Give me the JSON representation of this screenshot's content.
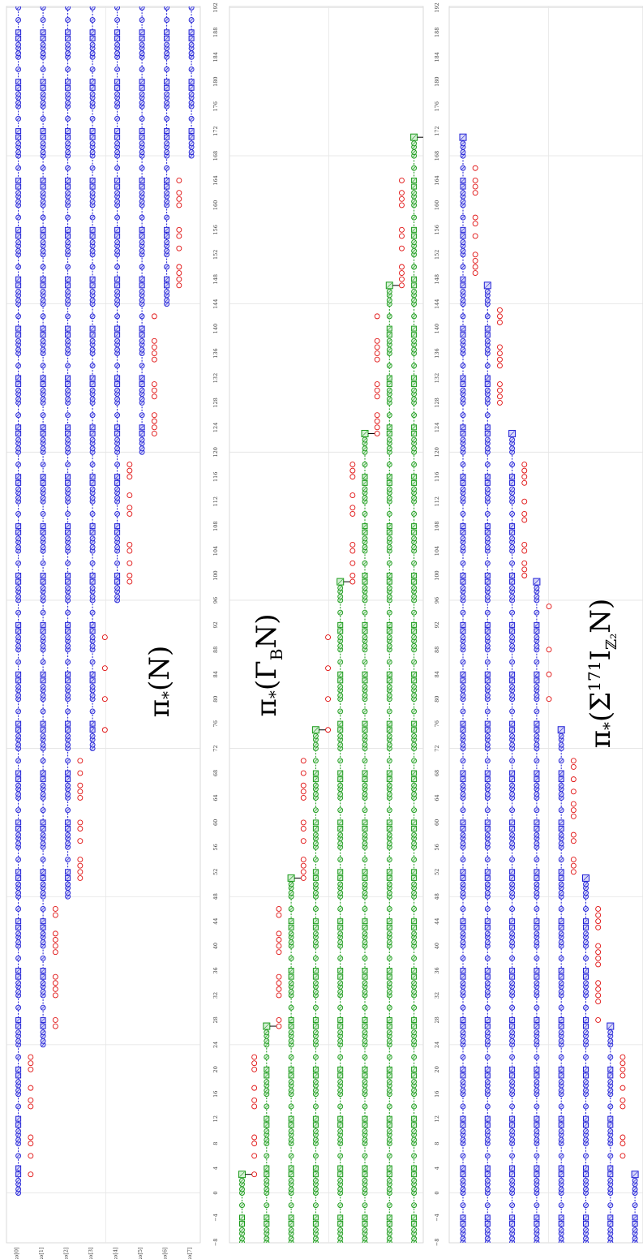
{
  "chart_data": [
    {
      "type": "scatter",
      "title": "π*(N)",
      "columns": [
        "ko[0]",
        "ko[1]",
        "ko[2]",
        "ko[3]",
        "ko[4]",
        "ko[5]",
        "ko[6]",
        "ko[7]"
      ],
      "axis_ticks": [
        -8,
        -4,
        0,
        4,
        8,
        12,
        16,
        20,
        24,
        28,
        32,
        36,
        40,
        44,
        48,
        52,
        56,
        60,
        64,
        68,
        72,
        76,
        80,
        84,
        88,
        92,
        96,
        100,
        104,
        108,
        112,
        116,
        120,
        124,
        128,
        132,
        136,
        140,
        144,
        148,
        152,
        156,
        160,
        164,
        168,
        172,
        176,
        180,
        184,
        188,
        192
      ],
      "axis_range": [
        -8,
        192
      ],
      "grid": true,
      "colors": {
        "tower": "#1f1fd6",
        "sporadic": "#e01010"
      },
      "towers": [
        {
          "column": 0,
          "start": 0,
          "end": 192
        },
        {
          "column": 1,
          "start": 24,
          "end": 192
        },
        {
          "column": 2,
          "start": 48,
          "end": 192
        },
        {
          "column": 3,
          "start": 72,
          "end": 192
        },
        {
          "column": 4,
          "start": 96,
          "end": 192
        },
        {
          "column": 5,
          "start": 120,
          "end": 192
        },
        {
          "column": 6,
          "start": 144,
          "end": 192
        },
        {
          "column": 7,
          "start": 168,
          "end": 192
        }
      ],
      "sporadic": [
        {
          "column": 0.5,
          "degrees": [
            3,
            6,
            8,
            9,
            14,
            15,
            17,
            20,
            21,
            22
          ]
        },
        {
          "column": 1.5,
          "degrees": [
            27,
            28,
            32,
            33,
            34,
            35,
            39,
            40,
            41,
            42,
            45,
            46
          ]
        },
        {
          "column": 2.5,
          "degrees": [
            51,
            52,
            53,
            54,
            57,
            59,
            60,
            64,
            65,
            66,
            68,
            70
          ]
        },
        {
          "column": 3.5,
          "degrees": [
            75,
            80,
            85,
            90
          ]
        },
        {
          "column": 4.5,
          "degrees": [
            99,
            100,
            102,
            104,
            105,
            110,
            111,
            113,
            116,
            117,
            118
          ]
        },
        {
          "column": 5.5,
          "degrees": [
            123,
            124,
            125,
            126,
            129,
            130,
            131,
            135,
            136,
            137,
            138,
            142
          ]
        },
        {
          "column": 6.5,
          "degrees": [
            147,
            148,
            149,
            150,
            153,
            155,
            156,
            160,
            161,
            162,
            164
          ]
        }
      ]
    },
    {
      "type": "scatter",
      "title": "π*(Γ_B N)",
      "axis_ticks": [
        -8,
        -4,
        0,
        4,
        8,
        12,
        16,
        20,
        24,
        28,
        32,
        36,
        40,
        44,
        48,
        52,
        56,
        60,
        64,
        68,
        72,
        76,
        80,
        84,
        88,
        92,
        96,
        100,
        104,
        108,
        112,
        116,
        120,
        124,
        128,
        132,
        136,
        140,
        144,
        148,
        152,
        156,
        160,
        164,
        168,
        172,
        176,
        180,
        184,
        188,
        192
      ],
      "axis_range": [
        -8,
        192
      ],
      "grid": true,
      "colors": {
        "tower": "#1a9a1a",
        "sporadic": "#e01010"
      },
      "towers": [
        {
          "column": 0,
          "start": -8,
          "end": 3
        },
        {
          "column": 1,
          "start": -8,
          "end": 27
        },
        {
          "column": 2,
          "start": -8,
          "end": 51
        },
        {
          "column": 3,
          "start": -8,
          "end": 75
        },
        {
          "column": 4,
          "start": -8,
          "end": 99
        },
        {
          "column": 5,
          "start": -8,
          "end": 123
        },
        {
          "column": 6,
          "start": -8,
          "end": 147
        },
        {
          "column": 7,
          "start": -8,
          "end": 171
        }
      ],
      "sporadic": [
        {
          "column": 0.5,
          "degrees": [
            3,
            6,
            8,
            9,
            14,
            15,
            17,
            20,
            21,
            22
          ]
        },
        {
          "column": 1.5,
          "degrees": [
            27,
            28,
            32,
            33,
            34,
            35,
            39,
            40,
            41,
            42,
            45,
            46
          ]
        },
        {
          "column": 2.5,
          "degrees": [
            51,
            52,
            53,
            54,
            57,
            59,
            60,
            64,
            65,
            66,
            68,
            70
          ]
        },
        {
          "column": 3.5,
          "degrees": [
            75,
            80,
            85,
            90
          ]
        },
        {
          "column": 4.5,
          "degrees": [
            99,
            100,
            102,
            104,
            105,
            110,
            111,
            113,
            116,
            117,
            118
          ]
        },
        {
          "column": 5.5,
          "degrees": [
            123,
            124,
            125,
            126,
            129,
            130,
            131,
            135,
            136,
            137,
            138,
            142
          ]
        },
        {
          "column": 6.5,
          "degrees": [
            147,
            148,
            149,
            150,
            153,
            155,
            156,
            160,
            161,
            162,
            164
          ]
        }
      ]
    },
    {
      "type": "scatter",
      "title": "π*(Σ^171 I_Z2 N)",
      "axis_ticks": [
        -8,
        -4,
        0,
        4,
        8,
        12,
        16,
        20,
        24,
        28,
        32,
        36,
        40,
        44,
        48,
        52,
        56,
        60,
        64,
        68,
        72,
        76,
        80,
        84,
        88,
        92,
        96,
        100,
        104,
        108,
        112,
        116,
        120,
        124,
        128,
        132,
        136,
        140,
        144,
        148,
        152,
        156,
        160,
        164,
        168,
        172,
        176,
        180,
        184,
        188,
        192
      ],
      "axis_range": [
        -8,
        192
      ],
      "grid": true,
      "colors": {
        "tower": "#1f1fd6",
        "sporadic": "#e01010"
      },
      "towers": [
        {
          "column": 0,
          "start": -8,
          "end": 171
        },
        {
          "column": 1,
          "start": -8,
          "end": 147
        },
        {
          "column": 2,
          "start": -8,
          "end": 123
        },
        {
          "column": 3,
          "start": -8,
          "end": 99
        },
        {
          "column": 4,
          "start": -8,
          "end": 75
        },
        {
          "column": 5,
          "start": -8,
          "end": 51
        },
        {
          "column": 6,
          "start": -8,
          "end": 27
        },
        {
          "column": 7,
          "start": -8,
          "end": 3
        }
      ],
      "sporadic": [
        {
          "column": 0.5,
          "degrees": [
            149,
            150,
            151,
            152,
            155,
            157,
            158,
            162,
            163,
            164,
            166
          ]
        },
        {
          "column": 1.5,
          "degrees": [
            128,
            129,
            130,
            131,
            134,
            135,
            136,
            137,
            141,
            142,
            143
          ]
        },
        {
          "column": 2.5,
          "degrees": [
            100,
            101,
            102,
            104,
            105,
            109,
            110,
            112,
            115,
            116,
            117,
            118
          ]
        },
        {
          "column": 3.5,
          "degrees": [
            80,
            84,
            88,
            95
          ]
        },
        {
          "column": 4.5,
          "degrees": [
            52,
            53,
            54,
            57,
            58,
            61,
            62,
            63,
            65,
            67,
            69,
            70
          ]
        },
        {
          "column": 5.5,
          "degrees": [
            28,
            31,
            32,
            33,
            34,
            37,
            38,
            39,
            40,
            43,
            44,
            45,
            46
          ]
        },
        {
          "column": 6.5,
          "degrees": [
            6,
            8,
            9,
            14,
            15,
            17,
            19,
            20,
            21,
            22
          ]
        }
      ]
    }
  ]
}
